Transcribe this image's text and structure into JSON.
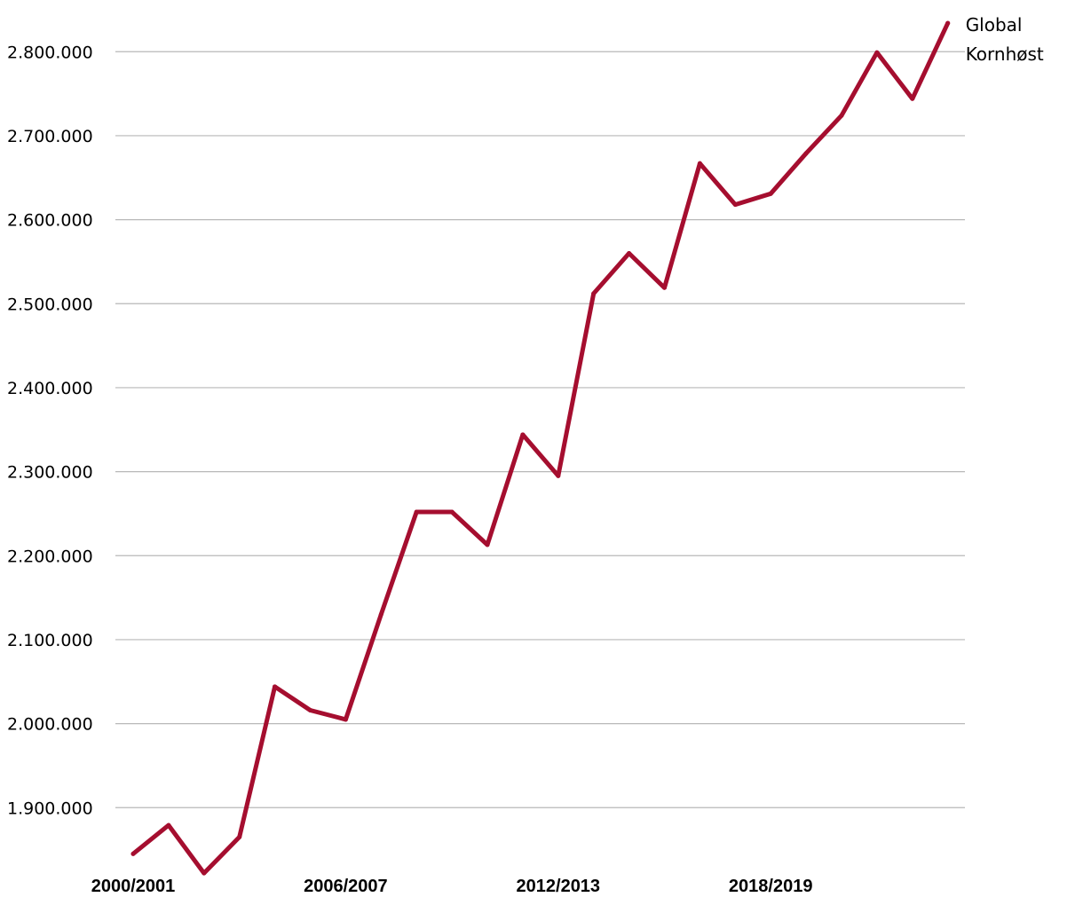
{
  "chart_data": {
    "type": "line",
    "title": "",
    "xlabel": "",
    "ylabel": "",
    "categories": [
      "2000/2001",
      "2001/2002",
      "2002/2003",
      "2003/2004",
      "2004/2005",
      "2005/2006",
      "2006/2007",
      "2007/2008",
      "2008/2009",
      "2009/2010",
      "2010/2011",
      "2011/2012",
      "2012/2013",
      "2013/2014",
      "2014/2015",
      "2015/2016",
      "2016/2017",
      "2017/2018",
      "2018/2019",
      "2019/2020",
      "2020/2021",
      "2021/2022",
      "2022/2023",
      "2023/2024"
    ],
    "x_tick_labels": [
      "2000/2001",
      "2006/2007",
      "2012/2013",
      "2018/2019"
    ],
    "y_tick_labels": [
      "1.900.000",
      "2.000.000",
      "2.100.000",
      "2.200.000",
      "2.300.000",
      "2.400.000",
      "2.500.000",
      "2.600.000",
      "2.700.000",
      "2.800.000"
    ],
    "ylim": [
      1820000,
      2840000
    ],
    "grid": true,
    "legend_placement": "end-of-line label, top-right",
    "series": [
      {
        "name": "Global\nKornhøst",
        "label_lines": [
          "Global",
          "Kornhøst"
        ],
        "color": "#a50e2f",
        "values": [
          1845000,
          1879000,
          1822000,
          1865000,
          2044000,
          2016000,
          2005000,
          2130000,
          2252000,
          2252000,
          2213000,
          2344000,
          2295000,
          2512000,
          2560000,
          2519000,
          2667000,
          2618000,
          2631000,
          2679000,
          2724000,
          2799000,
          2744000,
          2834000
        ]
      }
    ]
  }
}
